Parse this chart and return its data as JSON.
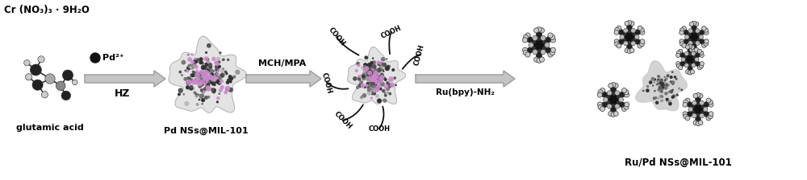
{
  "bg_color": "#ffffff",
  "figsize": [
    10.0,
    2.24
  ],
  "dpi": 100,
  "labels": {
    "formula": "Cr (NO₃)₃ · 9H₂O",
    "glutamic": "glutamic acid",
    "pd2plus": "Pd²⁺",
    "hz": "HZ",
    "mch_mpa": "MCH/MPA",
    "pd_nss": "Pd NSs@MIL-101",
    "rubpy": "Ru(bpy)-NH₂",
    "ru_pd_nss": "Ru/Pd NSs@MIL-101"
  },
  "text_color": "#000000",
  "arrow_color": "#bbbbbb",
  "atom_dark": "#2a2a2a",
  "atom_mid": "#666666",
  "atom_light": "#cccccc",
  "atom_green": "#bb88cc",
  "mof_gray": "#888888"
}
